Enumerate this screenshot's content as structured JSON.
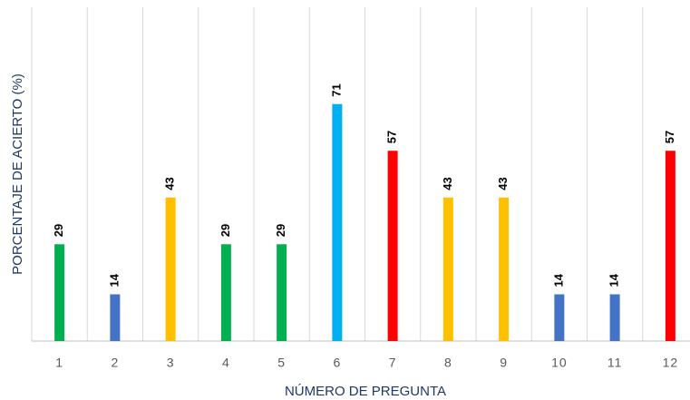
{
  "chart_data": {
    "type": "bar",
    "x_label": "NÚMERO DE PREGUNTA",
    "y_label": "PORCENTAJE DE ACIERTO (%)",
    "categories": [
      "1",
      "2",
      "3",
      "4",
      "5",
      "6",
      "7",
      "8",
      "9",
      "10",
      "11",
      "12"
    ],
    "values": [
      29,
      14,
      43,
      29,
      29,
      71,
      57,
      43,
      43,
      14,
      14,
      57
    ],
    "colors": [
      "#00b050",
      "#4472c4",
      "#ffc000",
      "#00b050",
      "#00b050",
      "#00b0f0",
      "#ff0000",
      "#ffc000",
      "#ffc000",
      "#4472c4",
      "#4472c4",
      "#ff0000"
    ],
    "ylim": [
      0,
      100
    ],
    "yticks": [],
    "grid": true
  }
}
